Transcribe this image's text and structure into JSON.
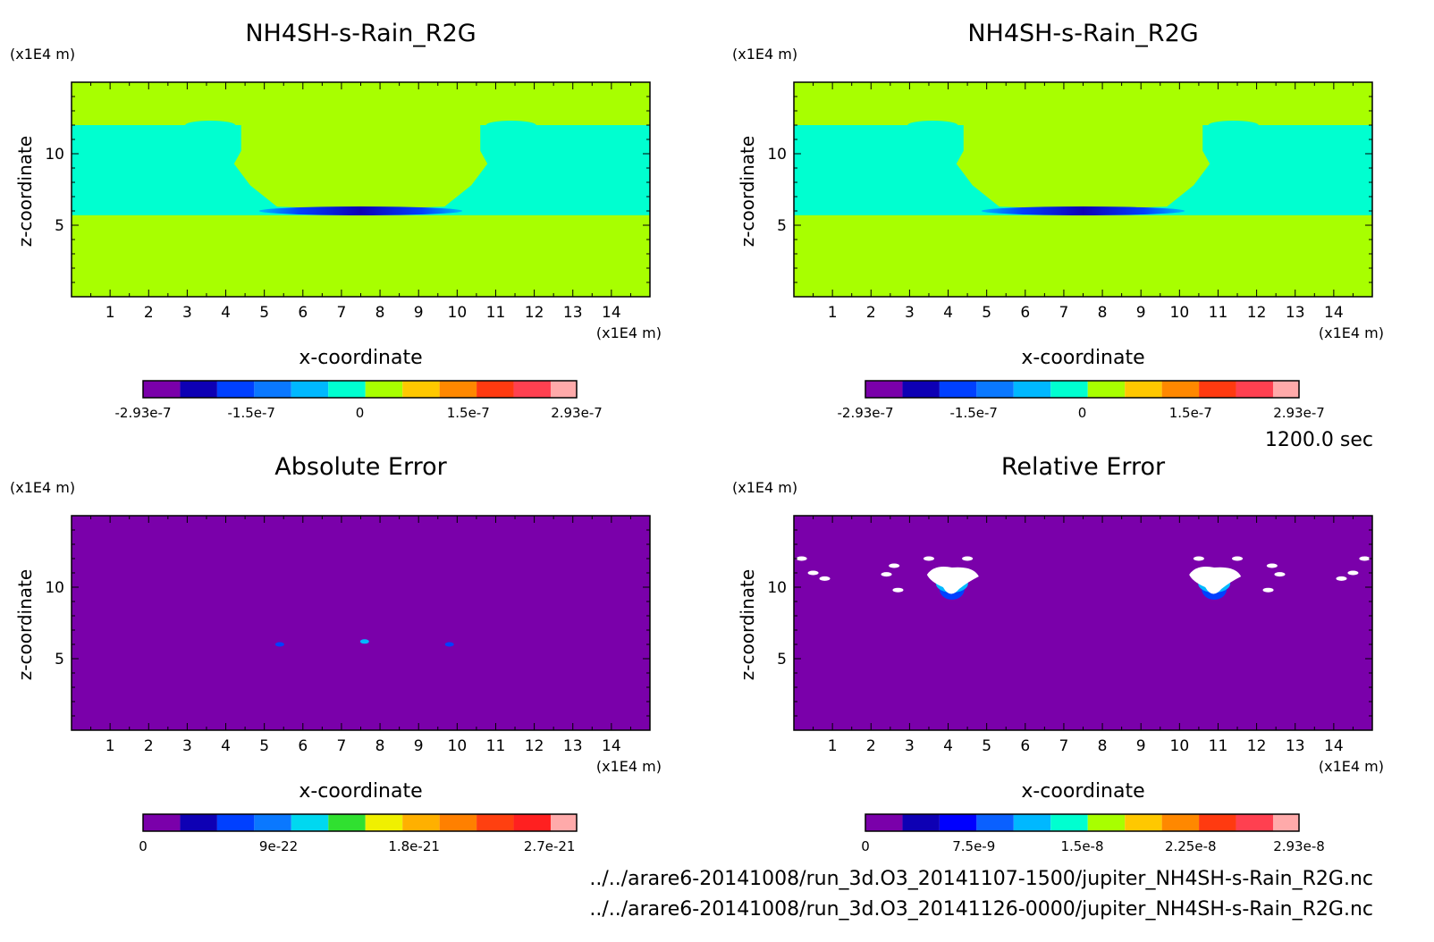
{
  "page": {
    "time_label": "1200.0 sec",
    "files": [
      "../../arare6-20141008/run_3d.O3_20141107-1500/jupiter_NH4SH-s-Rain_R2G.nc",
      "../../arare6-20141008/run_3d.O3_20141126-0000/jupiter_NH4SH-s-Rain_R2G.nc"
    ]
  },
  "chart_data": [
    {
      "type": "heatmap",
      "title": "NH4SH-s-Rain_R2G",
      "xlabel": "x-coordinate",
      "ylabel": "z-coordinate",
      "x_unit": "(x1E4 m)",
      "y_unit": "(x1E4 m)",
      "xlim": [
        0,
        15
      ],
      "ylim": [
        0,
        15
      ],
      "x_ticks": [
        1,
        2,
        3,
        4,
        5,
        6,
        7,
        8,
        9,
        10,
        11,
        12,
        13,
        14
      ],
      "y_ticks": [
        5,
        10
      ],
      "colorbar": {
        "colors": [
          "#7a00aa",
          "#0e00b4",
          "#0040ff",
          "#0a78ff",
          "#00b8ff",
          "#00ffd0",
          "#a8ff00",
          "#ffc800",
          "#ff8800",
          "#ff3a10",
          "#ff4050",
          "#ffaaaa"
        ],
        "labels": [
          "-2.93e-7",
          "-1.5e-7",
          "0",
          "1.5e-7",
          "2.93e-7"
        ]
      },
      "fields": {
        "background_value": 0,
        "cyan_band_value": "-5e-8",
        "cyan_band_z": [
          5.7,
          12
        ],
        "updraft_x": [
          4.4,
          10.6
        ],
        "negative_core_z": 6.0
      }
    },
    {
      "type": "heatmap",
      "title": "NH4SH-s-Rain_R2G",
      "xlabel": "x-coordinate",
      "ylabel": "z-coordinate",
      "x_unit": "(x1E4 m)",
      "y_unit": "(x1E4 m)",
      "xlim": [
        0,
        15
      ],
      "ylim": [
        0,
        15
      ],
      "x_ticks": [
        1,
        2,
        3,
        4,
        5,
        6,
        7,
        8,
        9,
        10,
        11,
        12,
        13,
        14
      ],
      "y_ticks": [
        5,
        10
      ],
      "colorbar": {
        "colors": [
          "#7a00aa",
          "#0e00b4",
          "#0040ff",
          "#0a78ff",
          "#00b8ff",
          "#00ffd0",
          "#a8ff00",
          "#ffc800",
          "#ff8800",
          "#ff3a10",
          "#ff4050",
          "#ffaaaa"
        ],
        "labels": [
          "-2.93e-7",
          "-1.5e-7",
          "0",
          "1.5e-7",
          "2.93e-7"
        ]
      },
      "fields": {
        "background_value": 0,
        "cyan_band_value": "-5e-8",
        "cyan_band_z": [
          5.7,
          12
        ],
        "updraft_x": [
          4.4,
          10.6
        ],
        "negative_core_z": 6.0
      }
    },
    {
      "type": "heatmap",
      "title": "Absolute Error",
      "xlabel": "x-coordinate",
      "ylabel": "z-coordinate",
      "x_unit": "(x1E4 m)",
      "y_unit": "(x1E4 m)",
      "xlim": [
        0,
        15
      ],
      "ylim": [
        0,
        15
      ],
      "x_ticks": [
        1,
        2,
        3,
        4,
        5,
        6,
        7,
        8,
        9,
        10,
        11,
        12,
        13,
        14
      ],
      "y_ticks": [
        5,
        10
      ],
      "colorbar": {
        "colors": [
          "#7a00aa",
          "#0e00b4",
          "#0040ff",
          "#0a78ff",
          "#00d8f0",
          "#30e030",
          "#f0f000",
          "#ffb000",
          "#ff8000",
          "#ff4010",
          "#ff2020",
          "#ffaaaa"
        ],
        "labels": [
          "0",
          "9e-22",
          "1.8e-21",
          "2.7e-21"
        ]
      },
      "spots": [
        {
          "x": 5.4,
          "z": 6.0,
          "color": "#0040ff"
        },
        {
          "x": 7.6,
          "z": 6.2,
          "color": "#00b8ff"
        },
        {
          "x": 9.8,
          "z": 6.0,
          "color": "#0040ff"
        }
      ]
    },
    {
      "type": "heatmap",
      "title": "Relative Error",
      "xlabel": "x-coordinate",
      "ylabel": "z-coordinate",
      "x_unit": "(x1E4 m)",
      "y_unit": "(x1E4 m)",
      "xlim": [
        0,
        15
      ],
      "ylim": [
        0,
        15
      ],
      "x_ticks": [
        1,
        2,
        3,
        4,
        5,
        6,
        7,
        8,
        9,
        10,
        11,
        12,
        13,
        14
      ],
      "y_ticks": [
        5,
        10
      ],
      "colorbar": {
        "colors": [
          "#7a00aa",
          "#0e00b4",
          "#0000ff",
          "#0a60ff",
          "#00b8ff",
          "#00ffd0",
          "#a8ff00",
          "#ffc800",
          "#ff8800",
          "#ff3a10",
          "#ff4050",
          "#ffaaaa"
        ],
        "labels": [
          "0",
          "7.5e-9",
          "1.5e-8",
          "2.25e-8",
          "2.93e-8"
        ]
      },
      "blobs": [
        {
          "x": 4.1,
          "z": 10.5
        },
        {
          "x": 10.9,
          "z": 10.5
        }
      ],
      "spots": [
        {
          "x": 0.2,
          "z": 12.0
        },
        {
          "x": 0.5,
          "z": 11.0
        },
        {
          "x": 0.8,
          "z": 10.6
        },
        {
          "x": 2.6,
          "z": 11.5
        },
        {
          "x": 2.4,
          "z": 10.9
        },
        {
          "x": 2.7,
          "z": 9.8
        },
        {
          "x": 3.5,
          "z": 12.0
        },
        {
          "x": 4.5,
          "z": 12.0
        },
        {
          "x": 10.5,
          "z": 12.0
        },
        {
          "x": 11.5,
          "z": 12.0
        },
        {
          "x": 12.4,
          "z": 11.5
        },
        {
          "x": 12.6,
          "z": 10.9
        },
        {
          "x": 12.3,
          "z": 9.8
        },
        {
          "x": 14.2,
          "z": 10.6
        },
        {
          "x": 14.5,
          "z": 11.0
        },
        {
          "x": 14.8,
          "z": 12.0
        }
      ]
    }
  ]
}
